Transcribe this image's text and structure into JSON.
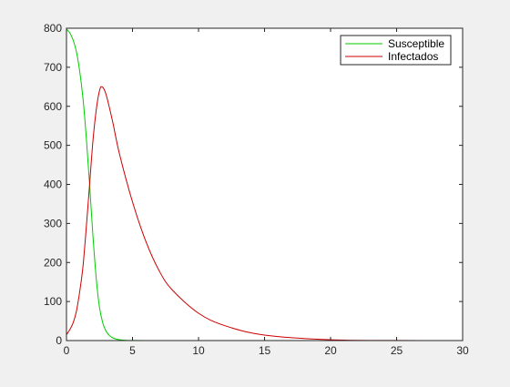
{
  "chart_data": {
    "type": "line",
    "title": "",
    "xlabel": "",
    "ylabel": "",
    "xlim": [
      0,
      30
    ],
    "ylim": [
      0,
      800
    ],
    "xticks": [
      0,
      5,
      10,
      15,
      20,
      25,
      30
    ],
    "yticks": [
      0,
      100,
      200,
      300,
      400,
      500,
      600,
      700,
      800
    ],
    "grid": false,
    "legend_position": "top-right",
    "series": [
      {
        "name": "Susceptible",
        "color": "#00cc00",
        "x": [
          0,
          0.25,
          0.5,
          0.75,
          1.0,
          1.25,
          1.5,
          1.75,
          2.0,
          2.25,
          2.5,
          2.75,
          3.0,
          3.25,
          3.5,
          4.0,
          4.5,
          5.0,
          6.0,
          8.0,
          10.0,
          15.0,
          20.0,
          25.0,
          30.0
        ],
        "y": [
          798,
          788,
          770,
          740,
          690,
          620,
          520,
          400,
          270,
          160,
          85,
          45,
          24,
          13,
          7,
          2,
          0.6,
          0.2,
          0,
          0,
          0,
          0,
          0,
          0,
          0
        ]
      },
      {
        "name": "Infectados",
        "color": "#cc0000",
        "x": [
          0,
          0.25,
          0.5,
          0.75,
          1.0,
          1.25,
          1.5,
          1.75,
          2.0,
          2.25,
          2.5,
          2.7,
          3.0,
          3.5,
          4.0,
          5.0,
          6.0,
          7.0,
          8.0,
          10.0,
          12.0,
          15.0,
          20.0,
          25.0,
          30.0
        ],
        "y": [
          15,
          28,
          45,
          75,
          125,
          190,
          290,
          400,
          510,
          590,
          640,
          650,
          630,
          560,
          480,
          355,
          255,
          180,
          130,
          70,
          38,
          14,
          2,
          0.3,
          0
        ]
      }
    ]
  }
}
